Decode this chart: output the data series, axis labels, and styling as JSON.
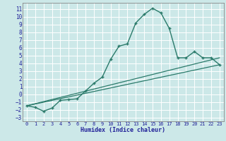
{
  "xlabel": "Humidex (Indice chaleur)",
  "bg_color": "#cce8e8",
  "grid_color": "#ffffff",
  "line_color": "#2a7a6a",
  "xlim": [
    -0.5,
    23.5
  ],
  "ylim": [
    -3.5,
    11.8
  ],
  "xticks": [
    0,
    1,
    2,
    3,
    4,
    5,
    6,
    7,
    8,
    9,
    10,
    11,
    12,
    13,
    14,
    15,
    16,
    17,
    18,
    19,
    20,
    21,
    22,
    23
  ],
  "yticks": [
    -3,
    -2,
    -1,
    0,
    1,
    2,
    3,
    4,
    5,
    6,
    7,
    8,
    9,
    10,
    11
  ],
  "line1_x": [
    0,
    1,
    2,
    3,
    4,
    5,
    6,
    7,
    8,
    9,
    10,
    11,
    12,
    13,
    14,
    15,
    16,
    17,
    18,
    19,
    20,
    21,
    22,
    23
  ],
  "line1_y": [
    -1.5,
    -1.7,
    -2.2,
    -1.8,
    -0.8,
    -0.7,
    -0.6,
    0.4,
    1.4,
    2.2,
    4.5,
    6.2,
    6.5,
    9.2,
    10.3,
    11.1,
    10.5,
    8.5,
    4.7,
    4.7,
    5.5,
    4.7,
    4.7,
    3.8
  ],
  "line3_x": [
    0,
    23
  ],
  "line3_y": [
    -1.5,
    3.8
  ],
  "line4_x": [
    0,
    23
  ],
  "line4_y": [
    -1.5,
    4.7
  ]
}
